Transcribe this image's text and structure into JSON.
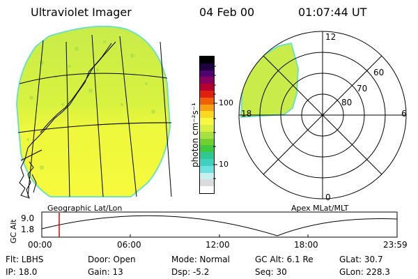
{
  "header": {
    "instrument": "Ultraviolet Imager",
    "date": "04 Feb 00",
    "time": "01:07:44 UT"
  },
  "colorbar": {
    "label": "photon cm⁻²s⁻¹",
    "ticks": [
      "100",
      "10"
    ],
    "colors": [
      "#ffffff",
      "#dcdcdc",
      "#c8f0f0",
      "#6fe0e0",
      "#3fd0c0",
      "#30c890",
      "#40c840",
      "#70d030",
      "#a8e040",
      "#d8f040",
      "#f8f840",
      "#f8d820",
      "#f8a010",
      "#f06008",
      "#e02010",
      "#b80030",
      "#880060",
      "#500070",
      "#200040",
      "#000000"
    ]
  },
  "labels": {
    "geo": "Geographic Lat/Lon",
    "apex": "Apex  MLat/MLT"
  },
  "polar": {
    "mlt": [
      "12",
      "18",
      "6",
      "0"
    ],
    "mlat": [
      "60",
      "70",
      "80"
    ]
  },
  "orbit": {
    "ylabel": "GC Alt",
    "yticks": [
      "9.0",
      "1.8"
    ],
    "xticks": [
      "00:00",
      "06:00",
      "12:00",
      "18:00",
      "23:59"
    ]
  },
  "status": {
    "flt": "Flt: LBHS",
    "door": "Door: Open",
    "mode": "Mode: Normal",
    "gcalt": "GC Alt: 6.1 Re",
    "glat": "GLat:  30.7",
    "ip": "IP: 18.0",
    "gain": "Gain: 13",
    "dsp": "Dsp:   -5.2",
    "seq": "Seq: 30",
    "glon": "GLon: 228.3"
  }
}
